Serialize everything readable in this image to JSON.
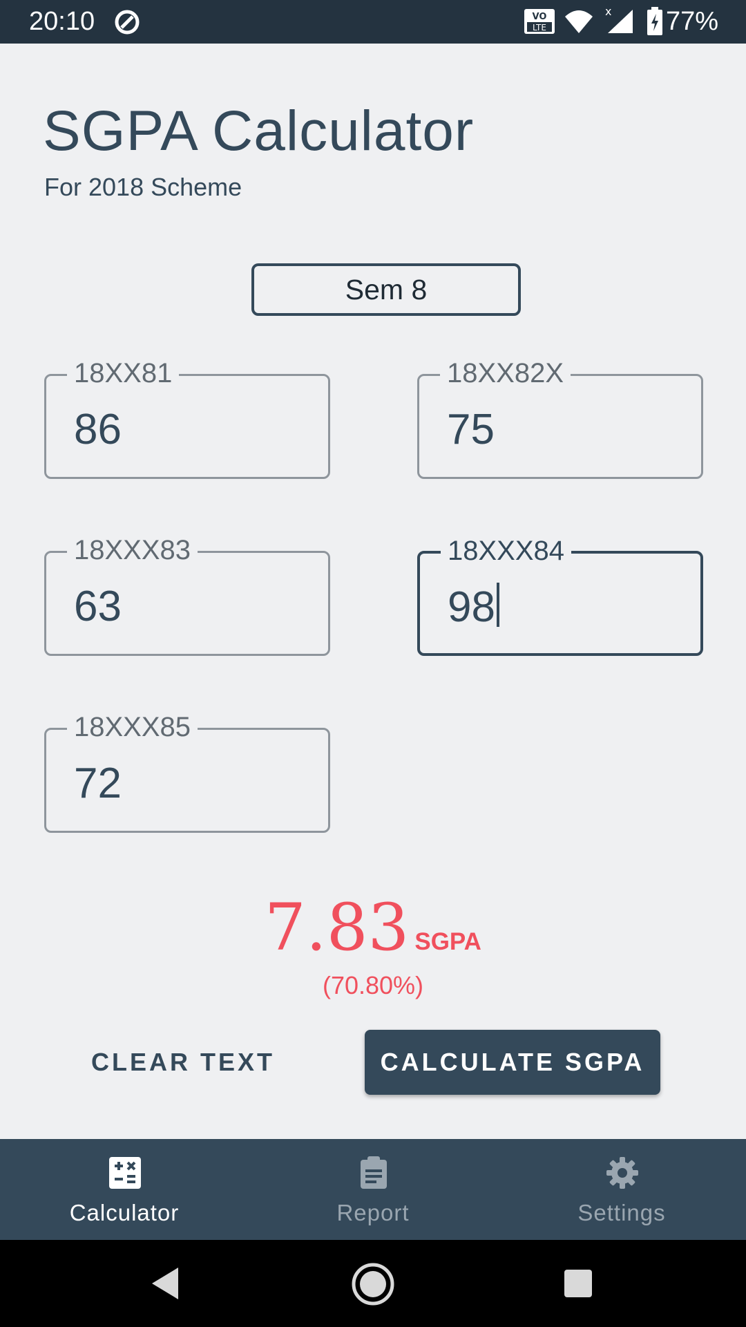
{
  "status_bar": {
    "time": "20:10",
    "battery": "77%",
    "icons": [
      "sync-icon",
      "volte-icon",
      "wifi-icon",
      "signal-icon",
      "battery-icon"
    ]
  },
  "header": {
    "title": "SGPA Calculator",
    "subtitle": "For 2018 Scheme"
  },
  "semester_selector": {
    "label": "Sem 8"
  },
  "fields": [
    {
      "label": "18XX81",
      "value": "86"
    },
    {
      "label": "18XX82X",
      "value": "75"
    },
    {
      "label": "18XXX83",
      "value": "63"
    },
    {
      "label": "18XXX84",
      "value": "98"
    },
    {
      "label": "18XXX85",
      "value": "72"
    }
  ],
  "result": {
    "sgpa": "7.83",
    "unit": "SGPA",
    "percentage": "(70.80%)"
  },
  "actions": {
    "clear_label": "CLEAR TEXT",
    "calculate_label": "CALCULATE SGPA"
  },
  "bottom_nav": {
    "items": [
      {
        "label": "Calculator",
        "icon": "calculator-icon",
        "active": true
      },
      {
        "label": "Report",
        "icon": "clipboard-icon",
        "active": false
      },
      {
        "label": "Settings",
        "icon": "gear-icon",
        "active": false
      }
    ]
  },
  "colors": {
    "primary": "#34495a",
    "accent": "#f0505d",
    "background": "#eff0f2"
  }
}
